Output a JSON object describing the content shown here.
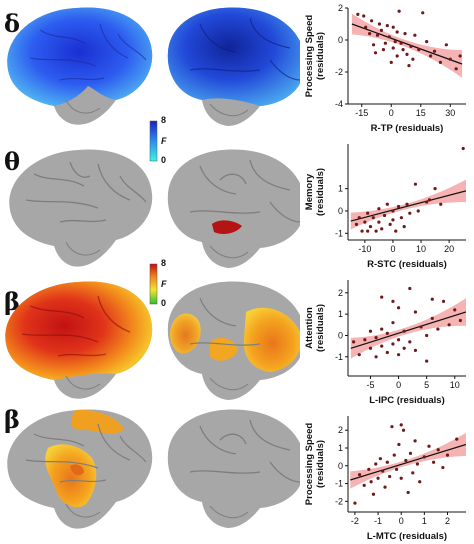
{
  "rows": [
    {
      "band": "δ",
      "colormap": "blue",
      "chart": {
        "ylabel": "Processing Speed (residuals)",
        "xlabel": "R-TP (residuals)",
        "xlim": [
          -22,
          38
        ],
        "ylim": [
          -4,
          2
        ],
        "xticks": [
          "-15",
          "0",
          "15",
          "30"
        ],
        "xtickvals": [
          -15,
          0,
          15,
          30
        ],
        "yticks": [
          "2",
          "0",
          "-2",
          "-4"
        ],
        "ytickvals": [
          2,
          0,
          -2,
          -4
        ],
        "line": [
          [
            -20,
            1.0
          ],
          [
            36,
            -1.5
          ]
        ],
        "band_width": 0.6,
        "points": [
          [
            -17,
            1.6
          ],
          [
            -14,
            1.5
          ],
          [
            -13,
            0.8
          ],
          [
            -11,
            0.4
          ],
          [
            -10,
            1.2
          ],
          [
            -9,
            -0.3
          ],
          [
            -7,
            0.3
          ],
          [
            -6,
            1.0
          ],
          [
            -5,
            0.6
          ],
          [
            -4,
            -0.6
          ],
          [
            -3,
            -0.2
          ],
          [
            -2,
            0.9
          ],
          [
            -1,
            0.2
          ],
          [
            0,
            -1.4
          ],
          [
            1,
            0.8
          ],
          [
            1,
            -0.5
          ],
          [
            2,
            -0.1
          ],
          [
            3,
            -1.0
          ],
          [
            4,
            1.8
          ],
          [
            5,
            -0.2
          ],
          [
            6,
            -0.6
          ],
          [
            7,
            0.4
          ],
          [
            8,
            -0.9
          ],
          [
            9,
            -1.6
          ],
          [
            10,
            -0.4
          ],
          [
            12,
            0.3
          ],
          [
            14,
            -0.6
          ],
          [
            16,
            1.7
          ],
          [
            18,
            -0.1
          ],
          [
            20,
            -1.0
          ],
          [
            22,
            -0.7
          ],
          [
            25,
            -1.4
          ],
          [
            28,
            -0.3
          ],
          [
            30,
            -1.2
          ],
          [
            33,
            -1.8
          ],
          [
            35,
            -1.0
          ],
          [
            -8,
            -0.8
          ],
          [
            3,
            0.5
          ],
          [
            11,
            -1.2
          ]
        ]
      }
    },
    {
      "band": "θ",
      "colormap": "blue",
      "chart": {
        "ylabel": "Memory (residuals)",
        "xlabel": "R-STC (residuals)",
        "xlim": [
          -16,
          26
        ],
        "ylim": [
          -1.3,
          3
        ],
        "xticks": [
          "-10",
          "0",
          "10",
          "20"
        ],
        "xtickvals": [
          -10,
          0,
          10,
          20
        ],
        "yticks": [
          "1",
          "0",
          "-1"
        ],
        "ytickvals": [
          1,
          0,
          -1
        ],
        "line": [
          [
            -15,
            -0.45
          ],
          [
            26,
            0.9
          ]
        ],
        "band_width": 0.35,
        "points": [
          [
            -13,
            -0.6
          ],
          [
            -12,
            -0.3
          ],
          [
            -11,
            -0.9
          ],
          [
            -10,
            -0.5
          ],
          [
            -9,
            -0.1
          ],
          [
            -8,
            -0.7
          ],
          [
            -7,
            -0.3
          ],
          [
            -6,
            -0.9
          ],
          [
            -5,
            -0.5
          ],
          [
            -5,
            0.1
          ],
          [
            -4,
            -0.8
          ],
          [
            -3,
            -0.2
          ],
          [
            -2,
            0.3
          ],
          [
            -1,
            -0.6
          ],
          [
            0,
            -0.4
          ],
          [
            1,
            -0.9
          ],
          [
            2,
            0.2
          ],
          [
            3,
            -0.3
          ],
          [
            4,
            -0.7
          ],
          [
            5,
            0.3
          ],
          [
            6,
            -0.1
          ],
          [
            8,
            1.2
          ],
          [
            9,
            0.0
          ],
          [
            12,
            0.4
          ],
          [
            13,
            0.5
          ],
          [
            15,
            1.0
          ],
          [
            17,
            0.3
          ],
          [
            25,
            2.8
          ],
          [
            -9,
            -0.9
          ],
          [
            0,
            0.0
          ]
        ]
      }
    },
    {
      "band": "β",
      "colormap": "hot",
      "chart": {
        "ylabel": "Attention (residuals)",
        "xlabel": "L-IPC (residuals)",
        "xlim": [
          -9,
          12
        ],
        "ylim": [
          -1.9,
          2.6
        ],
        "xticks": [
          "-5",
          "0",
          "5",
          "10"
        ],
        "xtickvals": [
          -5,
          0,
          5,
          10
        ],
        "yticks": [
          "2",
          "1",
          "0",
          "-1"
        ],
        "ytickvals": [
          2,
          1,
          0,
          -1
        ],
        "line": [
          [
            -8.5,
            -0.6
          ],
          [
            12,
            1.1
          ]
        ],
        "band_width": 0.45,
        "points": [
          [
            -8,
            -0.3
          ],
          [
            -7,
            -0.9
          ],
          [
            -6,
            -0.2
          ],
          [
            -5,
            -0.6
          ],
          [
            -5,
            0.2
          ],
          [
            -4,
            -1.0
          ],
          [
            -4,
            -0.1
          ],
          [
            -3,
            -0.5
          ],
          [
            -3,
            0.3
          ],
          [
            -2,
            -0.8
          ],
          [
            -2,
            0.1
          ],
          [
            -1,
            -0.4
          ],
          [
            -1,
            0.6
          ],
          [
            0,
            -0.2
          ],
          [
            0,
            -0.9
          ],
          [
            0,
            1.3
          ],
          [
            1,
            0.2
          ],
          [
            1,
            -0.6
          ],
          [
            2,
            -0.3
          ],
          [
            2,
            2.2
          ],
          [
            3,
            1.1
          ],
          [
            3,
            -0.7
          ],
          [
            4,
            0.4
          ],
          [
            5,
            0.0
          ],
          [
            5,
            -1.2
          ],
          [
            6,
            0.8
          ],
          [
            6,
            1.7
          ],
          [
            7,
            0.3
          ],
          [
            8,
            1.6
          ],
          [
            9,
            0.5
          ],
          [
            10,
            1.2
          ],
          [
            11,
            0.7
          ],
          [
            -1,
            1.6
          ],
          [
            -3,
            1.8
          ]
        ]
      }
    },
    {
      "band": "β",
      "colormap": "hot",
      "chart": {
        "ylabel": "Processing Speed (residuals)",
        "xlabel": "L-MTC (residuals)",
        "xlim": [
          -2.3,
          2.8
        ],
        "ylim": [
          -2.6,
          2.8
        ],
        "xticks": [
          "-2",
          "-1",
          "0",
          "1",
          "2"
        ],
        "xtickvals": [
          -2,
          -1,
          0,
          1,
          2
        ],
        "yticks": [
          "2",
          "1",
          "0",
          "-1",
          "-2"
        ],
        "ytickvals": [
          2,
          1,
          0,
          -1,
          -2
        ],
        "line": [
          [
            -2.2,
            -0.8
          ],
          [
            2.8,
            1.2
          ]
        ],
        "band_width": 0.45,
        "points": [
          [
            -2.0,
            -2.1
          ],
          [
            -1.8,
            -0.5
          ],
          [
            -1.6,
            -1.1
          ],
          [
            -1.4,
            -0.2
          ],
          [
            -1.3,
            -0.9
          ],
          [
            -1.2,
            -1.6
          ],
          [
            -1.1,
            0.1
          ],
          [
            -1.0,
            -0.7
          ],
          [
            -0.9,
            0.4
          ],
          [
            -0.8,
            -0.3
          ],
          [
            -0.7,
            -1.2
          ],
          [
            -0.6,
            0.2
          ],
          [
            -0.5,
            -0.6
          ],
          [
            -0.4,
            2.2
          ],
          [
            -0.3,
            0.6
          ],
          [
            -0.2,
            -0.2
          ],
          [
            -0.1,
            1.2
          ],
          [
            0.0,
            -0.7
          ],
          [
            0.1,
            2.0
          ],
          [
            0.2,
            0.3
          ],
          [
            0.3,
            -1.5
          ],
          [
            0.4,
            0.7
          ],
          [
            0.5,
            -0.4
          ],
          [
            0.6,
            1.4
          ],
          [
            0.7,
            0.1
          ],
          [
            0.8,
            -0.9
          ],
          [
            1.0,
            0.5
          ],
          [
            1.2,
            1.1
          ],
          [
            1.4,
            0.2
          ],
          [
            1.6,
            0.9
          ],
          [
            1.8,
            -0.1
          ],
          [
            2.0,
            0.6
          ],
          [
            2.4,
            1.5
          ],
          [
            0.0,
            2.3
          ]
        ]
      }
    }
  ],
  "colorbars": [
    {
      "max": "8",
      "min": "0",
      "var": "F",
      "colormap": "blue"
    },
    {
      "max": "8",
      "min": "0",
      "var": "F",
      "colormap": "hot"
    }
  ],
  "colors": {
    "brain": "#a7a7a7",
    "sulcus": "#7e7e7e",
    "ci_band": "#f5a6a6",
    "fit_line": "#111111",
    "points": "#6e1a1a"
  }
}
